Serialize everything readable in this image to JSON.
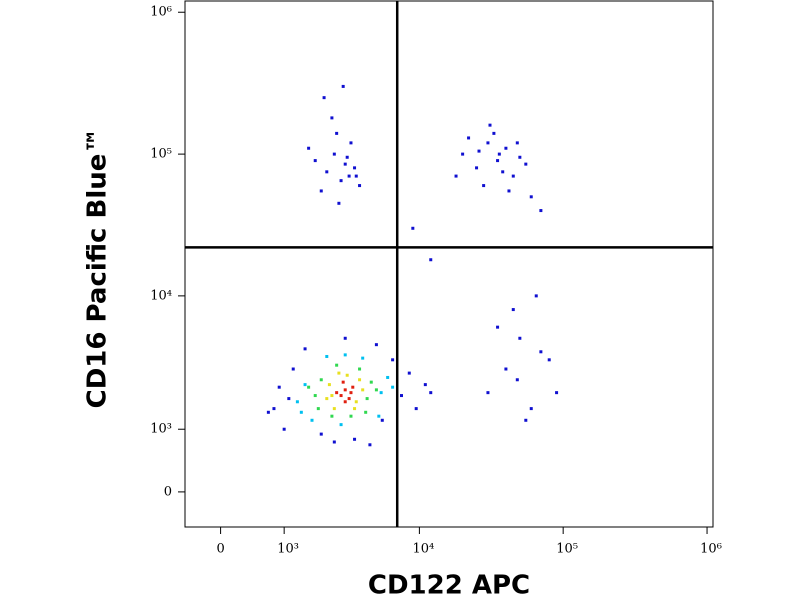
{
  "chart_data": {
    "type": "scatter",
    "xlabel": "CD122 APC",
    "ylabel": "CD16 Pacific Blue™",
    "xscale": "biexponential",
    "yscale": "biexponential",
    "xlim": [
      -500,
      1100000
    ],
    "ylim": [
      -500,
      1200000
    ],
    "xticks": [
      0,
      {
        "value": 1000,
        "label": "10³"
      },
      {
        "value": 10000,
        "label": "10⁴"
      },
      {
        "value": 100000,
        "label": "10⁵"
      },
      {
        "value": 1000000,
        "label": "10⁶"
      }
    ],
    "yticks": [
      0,
      {
        "value": 1000,
        "label": "10³"
      },
      {
        "value": 10000,
        "label": "10⁴"
      },
      {
        "value": 100000,
        "label": "10⁵"
      },
      {
        "value": 1000000,
        "label": "10⁶"
      }
    ],
    "gates": {
      "x": 7000,
      "y": 22000
    },
    "series": [
      {
        "color": "#1010d0",
        "x": [
          800,
          900,
          1000,
          1100,
          7500,
          8500,
          9500,
          11000,
          1200,
          2000,
          3500,
          5000,
          6500,
          2500,
          4500,
          700,
          12000,
          1500,
          3000,
          5500,
          1800,
          2200,
          2500,
          2800,
          3000,
          3300,
          3600,
          2000,
          2600,
          3100,
          2400,
          3800,
          1600,
          2900,
          3500,
          2700,
          2100,
          3200,
          20000,
          25000,
          30000,
          35000,
          40000,
          45000,
          50000,
          28000,
          33000,
          38000,
          22000,
          55000,
          60000,
          26000,
          42000,
          31000,
          48000,
          18000,
          70000,
          36000,
          30000,
          40000,
          50000,
          60000,
          70000,
          45000,
          55000,
          35000,
          80000,
          65000,
          48000,
          90000,
          9000,
          12000
        ],
        "y": [
          1500,
          2200,
          1000,
          1800,
          1900,
          2800,
          1500,
          2300,
          3000,
          900,
          800,
          4500,
          3500,
          750,
          700,
          1400,
          2000,
          4200,
          5000,
          1200,
          90000,
          75000,
          100000,
          65000,
          85000,
          120000,
          70000,
          55000,
          140000,
          95000,
          180000,
          60000,
          110000,
          300000,
          80000,
          45000,
          250000,
          70000,
          100000,
          80000,
          120000,
          90000,
          110000,
          70000,
          95000,
          60000,
          140000,
          75000,
          130000,
          85000,
          50000,
          105000,
          55000,
          160000,
          120000,
          70000,
          40000,
          100000,
          2000,
          3000,
          5000,
          1500,
          4000,
          8000,
          1200,
          6000,
          3500,
          10000,
          2500,
          2000,
          30000,
          18000
        ]
      },
      {
        "color": "#00c0f0",
        "x": [
          1300,
          1500,
          5400,
          6000,
          1700,
          2200,
          3000,
          4000,
          5200,
          1400,
          2800,
          6500
        ],
        "y": [
          1700,
          2300,
          2000,
          2600,
          1200,
          3700,
          3800,
          3600,
          1300,
          1400,
          1100,
          2200
        ]
      },
      {
        "color": "#30d850",
        "x": [
          1800,
          2000,
          4300,
          4600,
          1900,
          2600,
          3800,
          4200,
          2400,
          3300,
          1600,
          5000
        ],
        "y": [
          1900,
          2500,
          1800,
          2400,
          1500,
          3200,
          3000,
          1400,
          1300,
          1300,
          2200,
          2100
        ]
      },
      {
        "color": "#e8e020",
        "x": [
          2300,
          3600,
          2500,
          3800,
          2700,
          3500,
          2400,
          3100,
          4000,
          2200
        ],
        "y": [
          2300,
          1700,
          1500,
          2500,
          2800,
          1500,
          1900,
          2700,
          2100,
          1800
        ]
      },
      {
        "color": "#e02010",
        "x": [
          2800,
          3000,
          3200,
          2600,
          3400,
          3000,
          2900,
          3300
        ],
        "y": [
          1900,
          2100,
          1800,
          2000,
          2200,
          1700,
          2400,
          2000
        ]
      }
    ]
  }
}
